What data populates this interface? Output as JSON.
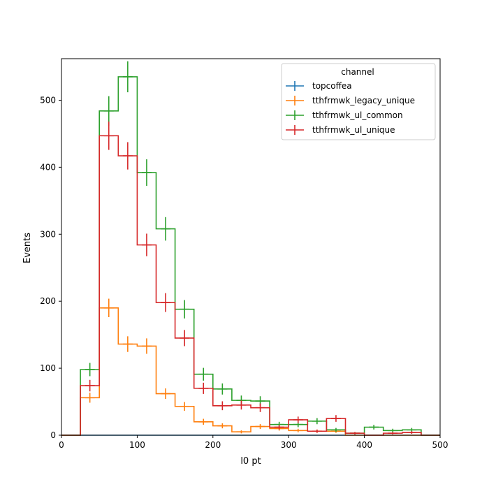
{
  "chart_data": {
    "type": "histogram",
    "xlabel": "l0 pt",
    "ylabel": "Events",
    "xlim": [
      0,
      500
    ],
    "ylim": [
      0,
      562
    ],
    "xticks": [
      0,
      100,
      200,
      300,
      400,
      500
    ],
    "yticks": [
      0,
      100,
      200,
      300,
      400,
      500
    ],
    "bin_edges": [
      0,
      25,
      50,
      75,
      100,
      125,
      150,
      175,
      200,
      225,
      250,
      275,
      300,
      325,
      350,
      375,
      400,
      425,
      450,
      475,
      500
    ],
    "legend": {
      "title": "channel",
      "position": "top-right"
    },
    "series": [
      {
        "name": "topcoffea",
        "color": "#1f77b4",
        "values": [
          0,
          0,
          0,
          0,
          0,
          0,
          0,
          0,
          0,
          0,
          0,
          0,
          0,
          0,
          0,
          0,
          0,
          0,
          0,
          0
        ]
      },
      {
        "name": "tthfrmwk_legacy_unique",
        "color": "#ff7f0e",
        "values": [
          0,
          56,
          190,
          136,
          133,
          62,
          43,
          20,
          14,
          5,
          13,
          10,
          7,
          6,
          6,
          0,
          0,
          0,
          0,
          0
        ]
      },
      {
        "name": "tthfrmwk_ul_common",
        "color": "#2ca02c",
        "values": [
          0,
          98,
          484,
          535,
          392,
          308,
          188,
          91,
          69,
          52,
          51,
          16,
          16,
          21,
          8,
          3,
          12,
          7,
          8,
          0
        ]
      },
      {
        "name": "tthfrmwk_ul_unique",
        "color": "#d62728",
        "values": [
          0,
          74,
          447,
          417,
          284,
          198,
          145,
          70,
          44,
          45,
          41,
          12,
          23,
          6,
          25,
          3,
          0,
          3,
          4,
          0
        ]
      }
    ]
  }
}
